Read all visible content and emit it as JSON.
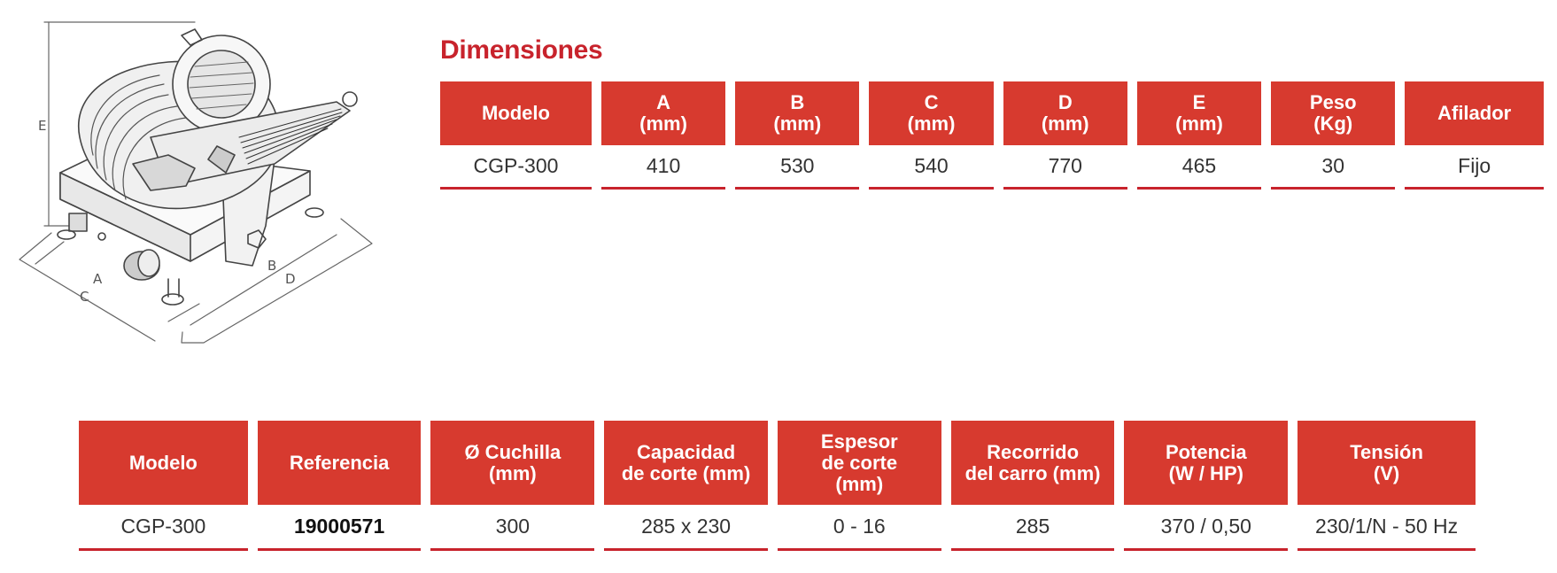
{
  "illustration": {
    "icon": "meat-slicer-icon",
    "dimension_labels": {
      "a": "A",
      "b": "B",
      "c": "C",
      "d": "D",
      "e": "E"
    }
  },
  "dimensions": {
    "title": "Dimensiones",
    "headers": [
      "Modelo",
      "A\n(mm)",
      "B\n(mm)",
      "C\n(mm)",
      "D\n(mm)",
      "E\n(mm)",
      "Peso\n(Kg)",
      "Afilador"
    ],
    "row": [
      "CGP-300",
      "410",
      "530",
      "540",
      "770",
      "465",
      "30",
      "Fijo"
    ]
  },
  "specs": {
    "headers": [
      "Modelo",
      "Referencia",
      "Ø Cuchilla\n(mm)",
      "Capacidad\nde corte (mm)",
      "Espesor\nde corte\n(mm)",
      "Recorrido\ndel carro (mm)",
      "Potencia\n(W / HP)",
      "Tensión\n(V)"
    ],
    "row": [
      "CGP-300",
      "19000571",
      "300",
      "285 x 230",
      "0 - 16",
      "285",
      "370 / 0,50",
      "230/1/N - 50 Hz"
    ]
  },
  "colors": {
    "header_bg": "#d73a2f",
    "title": "#c8232c",
    "rule": "#c8232c"
  }
}
